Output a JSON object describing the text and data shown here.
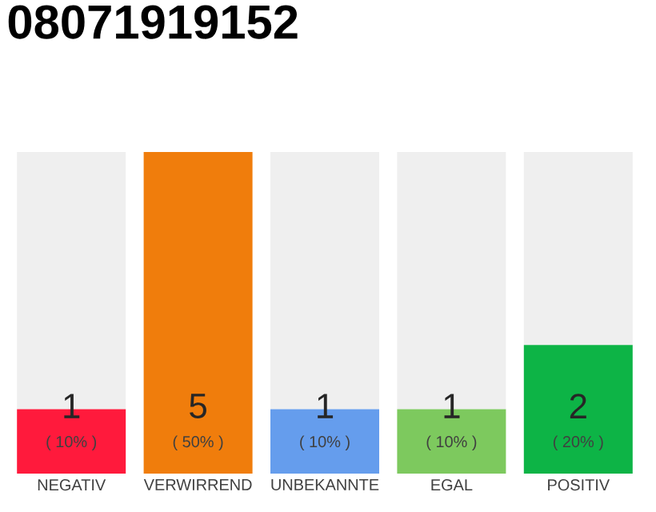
{
  "chart_data": {
    "type": "bar",
    "title": "08071919152",
    "categories": [
      "NEGATIV",
      "VERWIRREND",
      "UNBEKANNTE",
      "EGAL",
      "POSITIV"
    ],
    "stacked": true,
    "series": [
      {
        "colors": [
          "#ff1a3c",
          "#f07d0c",
          "#659ded",
          "#7dc95e",
          "#0db446"
        ],
        "values": [
          1,
          5,
          1,
          1,
          2
        ],
        "value_labels": [
          "1",
          "5",
          "1",
          "1",
          "2"
        ]
      },
      {
        "color": "#efefef",
        "values": [
          4,
          0,
          4,
          4,
          3
        ]
      }
    ],
    "annotations": [
      "( 10% )",
      "( 50% )",
      "( 10% )",
      "( 10% )",
      "( 20% )"
    ]
  }
}
